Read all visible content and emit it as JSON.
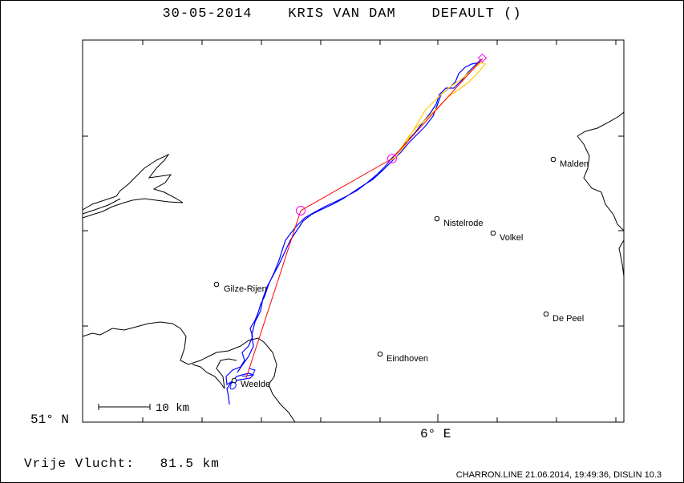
{
  "title": "30-05-2014    KRIS VAN DAM    DEFAULT ()",
  "axis": {
    "lat_label": "51° N",
    "lon_label": "6° E"
  },
  "scale_bar": {
    "label": "10 km"
  },
  "places": [
    {
      "name": "Malden"
    },
    {
      "name": "Nistelrode"
    },
    {
      "name": "Volkel"
    },
    {
      "name": "Gilze-Rijen"
    },
    {
      "name": "De Peel"
    },
    {
      "name": "Eindhoven"
    },
    {
      "name": "Weelde"
    }
  ],
  "footer": {
    "flight": "Vrije Vlucht:   81.5 km",
    "credit": "CHARRON.LINE 21.06.2014, 19:49:36, DISLIN 10.3"
  },
  "colors": {
    "track": "#0000ff",
    "task": "#ff0000",
    "alt_track": "#ffcc00",
    "turnpoint": "#ff00ff",
    "frame": "#000000"
  }
}
